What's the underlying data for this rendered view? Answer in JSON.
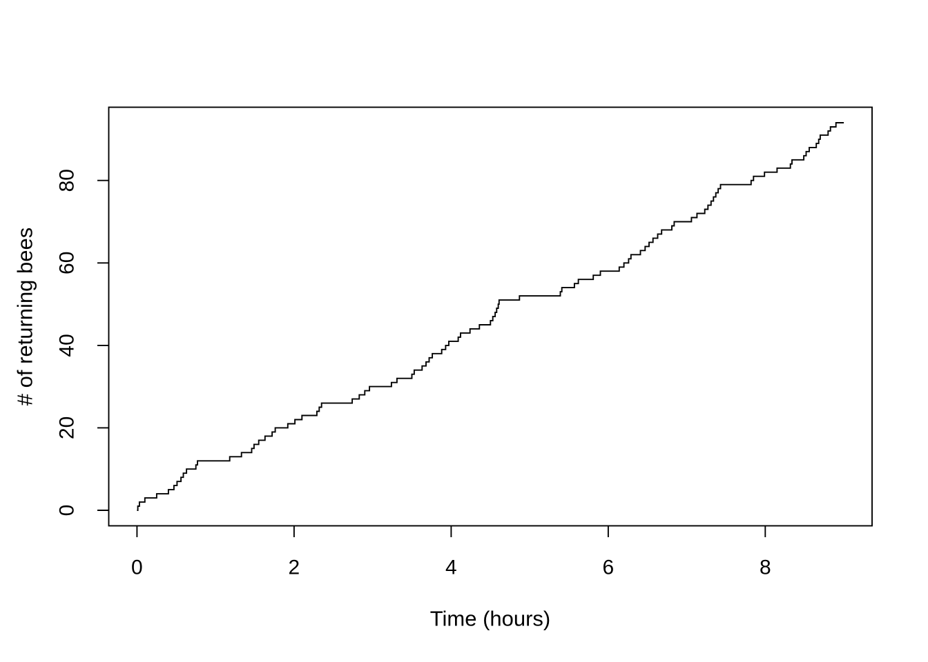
{
  "figure": {
    "background_color": "#FFFFFF",
    "foreground_color": "#000000"
  },
  "chart_data": {
    "type": "line",
    "subtype": "step",
    "title": "",
    "xlabel": "Time (hours)",
    "ylabel": "# of returning bees",
    "xlim": [
      0,
      9
    ],
    "ylim": [
      0,
      94
    ],
    "xticks": [
      0,
      2,
      4,
      6,
      8
    ],
    "yticks": [
      0,
      20,
      40,
      60,
      80
    ],
    "grid": false,
    "legend": false,
    "line_color": "#000000",
    "start_point": {
      "t": 0,
      "count": 0
    },
    "end_time_hours": 9.0,
    "final_count": 94,
    "jump_times_hours": [
      0.01,
      0.03,
      0.1,
      0.25,
      0.4,
      0.47,
      0.51,
      0.56,
      0.59,
      0.63,
      0.75,
      0.77,
      1.18,
      1.33,
      1.46,
      1.49,
      1.55,
      1.63,
      1.72,
      1.76,
      1.92,
      2.01,
      2.1,
      2.29,
      2.32,
      2.35,
      2.74,
      2.83,
      2.9,
      2.96,
      3.24,
      3.31,
      3.5,
      3.53,
      3.63,
      3.68,
      3.72,
      3.76,
      3.88,
      3.93,
      3.97,
      4.09,
      4.12,
      4.24,
      4.36,
      4.5,
      4.53,
      4.56,
      4.58,
      4.6,
      4.61,
      4.87,
      5.39,
      5.41,
      5.57,
      5.62,
      5.81,
      5.9,
      6.14,
      6.2,
      6.26,
      6.29,
      6.41,
      6.47,
      6.52,
      6.57,
      6.63,
      6.68,
      6.81,
      6.84,
      7.06,
      7.13,
      7.23,
      7.27,
      7.31,
      7.34,
      7.37,
      7.4,
      7.43,
      7.82,
      7.85,
      7.99,
      8.15,
      8.32,
      8.34,
      8.49,
      8.52,
      8.56,
      8.65,
      8.68,
      8.7,
      8.8,
      8.83,
      8.9
    ],
    "cumulative_counts": [
      1,
      2,
      3,
      4,
      5,
      6,
      7,
      8,
      9,
      10,
      11,
      12,
      13,
      14,
      15,
      16,
      17,
      18,
      19,
      20,
      21,
      22,
      23,
      24,
      25,
      26,
      27,
      28,
      29,
      30,
      31,
      32,
      33,
      34,
      35,
      36,
      37,
      38,
      39,
      40,
      41,
      42,
      43,
      44,
      45,
      46,
      47,
      48,
      49,
      50,
      51,
      52,
      53,
      54,
      55,
      56,
      57,
      58,
      59,
      60,
      61,
      62,
      63,
      64,
      65,
      66,
      67,
      68,
      69,
      70,
      71,
      72,
      73,
      74,
      75,
      76,
      77,
      78,
      79,
      80,
      81,
      82,
      83,
      84,
      85,
      86,
      87,
      88,
      89,
      90,
      91,
      92,
      93,
      94
    ]
  }
}
